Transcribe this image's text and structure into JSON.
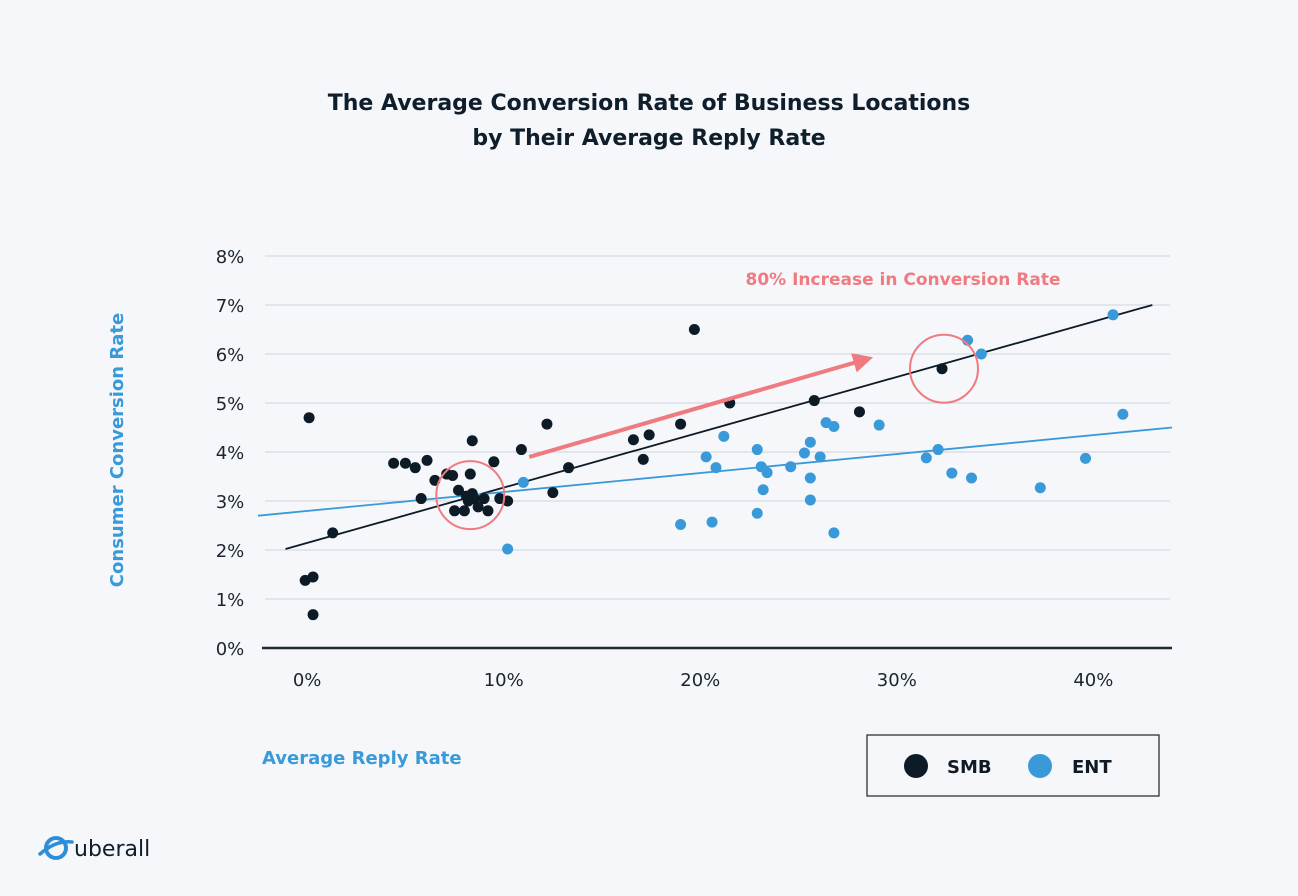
{
  "brand": {
    "name": "uberall",
    "icon": "globe-icon"
  },
  "colors": {
    "smb": "#0d1b27",
    "ent": "#3a9ad9",
    "accent": "#ef7b80",
    "grid": "#d0d4d9",
    "axis": "#1f2a33"
  },
  "chart_data": {
    "type": "scatter",
    "title": [
      "The Average Conversion Rate of Business Locations",
      "by Their Average Reply Rate"
    ],
    "xlabel": "Average Reply Rate",
    "ylabel": "Consumer Conversion Rate",
    "xlim": [
      -2.5,
      44
    ],
    "ylim": [
      0,
      8
    ],
    "x_ticks": [
      0,
      10,
      20,
      30,
      40
    ],
    "x_tick_labels": [
      "0%",
      "10%",
      "20%",
      "30%",
      "40%"
    ],
    "y_ticks": [
      0,
      1,
      2,
      3,
      4,
      5,
      6,
      7,
      8
    ],
    "y_tick_labels": [
      "0%",
      "1%",
      "2%",
      "3%",
      "4%",
      "5%",
      "6%",
      "7%",
      "8%"
    ],
    "grid": "horizontal",
    "legend_position": "bottom-right",
    "annotation": "80% Increase in Conversion Rate",
    "series": [
      {
        "name": "SMB",
        "points": [
          [
            0.1,
            4.7
          ],
          [
            -0.1,
            1.38
          ],
          [
            0.3,
            1.45
          ],
          [
            0.3,
            0.68
          ],
          [
            1.3,
            2.35
          ],
          [
            4.4,
            3.77
          ],
          [
            5.0,
            3.77
          ],
          [
            5.5,
            3.68
          ],
          [
            6.1,
            3.83
          ],
          [
            5.8,
            3.05
          ],
          [
            6.5,
            3.42
          ],
          [
            7.1,
            3.55
          ],
          [
            7.4,
            3.52
          ],
          [
            7.7,
            3.22
          ],
          [
            7.5,
            2.8
          ],
          [
            8.0,
            2.8
          ],
          [
            8.1,
            3.1
          ],
          [
            8.3,
            3.55
          ],
          [
            8.4,
            4.23
          ],
          [
            8.4,
            3.15
          ],
          [
            8.2,
            3.0
          ],
          [
            8.5,
            3.05
          ],
          [
            8.7,
            2.88
          ],
          [
            9.0,
            3.05
          ],
          [
            9.2,
            2.8
          ],
          [
            9.5,
            3.8
          ],
          [
            9.8,
            3.05
          ],
          [
            10.2,
            3.0
          ],
          [
            10.9,
            4.05
          ],
          [
            12.2,
            4.57
          ],
          [
            12.5,
            3.17
          ],
          [
            13.3,
            3.68
          ],
          [
            16.6,
            4.25
          ],
          [
            17.1,
            3.85
          ],
          [
            17.4,
            4.35
          ],
          [
            19.0,
            4.57
          ],
          [
            19.7,
            6.5
          ],
          [
            21.5,
            5.0
          ],
          [
            25.8,
            5.05
          ],
          [
            28.1,
            4.82
          ],
          [
            32.3,
            5.7
          ]
        ]
      },
      {
        "name": "ENT",
        "points": [
          [
            10.2,
            2.02
          ],
          [
            11.0,
            3.38
          ],
          [
            19.0,
            2.52
          ],
          [
            20.3,
            3.9
          ],
          [
            20.6,
            2.57
          ],
          [
            20.8,
            3.68
          ],
          [
            21.2,
            4.32
          ],
          [
            22.9,
            2.75
          ],
          [
            22.9,
            4.05
          ],
          [
            23.1,
            3.7
          ],
          [
            23.2,
            3.23
          ],
          [
            23.4,
            3.58
          ],
          [
            24.6,
            3.7
          ],
          [
            25.3,
            3.98
          ],
          [
            25.6,
            3.47
          ],
          [
            25.6,
            4.2
          ],
          [
            25.6,
            3.02
          ],
          [
            26.1,
            3.9
          ],
          [
            26.4,
            4.6
          ],
          [
            26.8,
            4.52
          ],
          [
            26.8,
            2.35
          ],
          [
            29.1,
            4.55
          ],
          [
            31.5,
            3.88
          ],
          [
            32.1,
            4.05
          ],
          [
            32.8,
            3.57
          ],
          [
            33.6,
            6.28
          ],
          [
            33.8,
            3.47
          ],
          [
            34.3,
            6.0
          ],
          [
            37.3,
            3.27
          ],
          [
            39.6,
            3.87
          ],
          [
            41.0,
            6.8
          ],
          [
            41.5,
            4.77
          ]
        ]
      }
    ],
    "trendlines": [
      {
        "name": "SMB",
        "x": [
          -1.1,
          43.0
        ],
        "y": [
          2.02,
          7.0
        ]
      },
      {
        "name": "ENT",
        "x": [
          -2.5,
          44.0
        ],
        "y": [
          2.7,
          4.5
        ]
      }
    ],
    "highlights": [
      {
        "x": 8.3,
        "y": 3.12
      },
      {
        "x": 32.4,
        "y": 5.7
      }
    ],
    "arrow": {
      "from": [
        11.3,
        3.9
      ],
      "to": [
        28.5,
        5.9
      ]
    }
  }
}
